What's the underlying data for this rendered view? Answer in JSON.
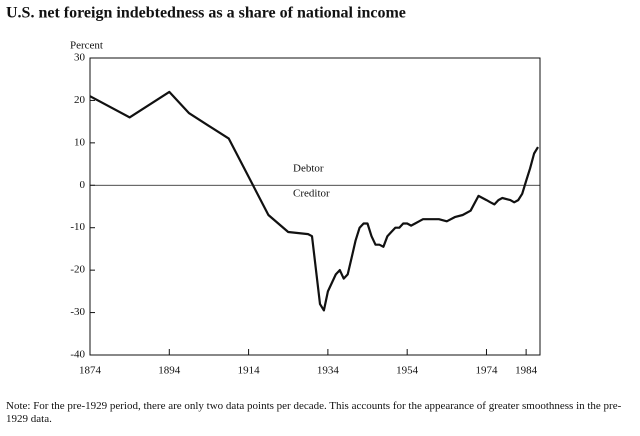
{
  "chart_data": {
    "type": "line",
    "title": "U.S. net foreign indebtedness as a share of national income",
    "y_label": "Percent",
    "annotations": [
      "Debtor",
      "Creditor"
    ],
    "note": "Note: For the pre-1929 period, there are only two data points per decade.  This accounts for the appearance of greater smoothness in the pre-1929 data.",
    "x": [
      1874,
      1884,
      1894,
      1899,
      1904,
      1909,
      1914,
      1919,
      1924,
      1929,
      1930,
      1931,
      1932,
      1933,
      1934,
      1936,
      1937,
      1938,
      1939,
      1940,
      1941,
      1942,
      1943,
      1944,
      1945,
      1946,
      1947,
      1948,
      1949,
      1950,
      1951,
      1952,
      1953,
      1954,
      1955,
      1956,
      1957,
      1958,
      1960,
      1962,
      1964,
      1966,
      1968,
      1970,
      1972,
      1974,
      1975,
      1976,
      1977,
      1978,
      1980,
      1981,
      1982,
      1983,
      1984,
      1985,
      1986,
      1987
    ],
    "series": [
      {
        "name": "Net foreign indebtedness",
        "color": "#111111",
        "values": [
          21,
          16,
          22,
          17,
          14,
          11,
          2,
          -7,
          -11,
          -11.5,
          -12,
          -20,
          -28,
          -29.5,
          -25,
          -21,
          -20,
          -22,
          -21,
          -17,
          -13,
          -10,
          -9,
          -9,
          -12,
          -14,
          -14,
          -14.5,
          -12,
          -11,
          -10,
          -10,
          -9,
          -9,
          -9.5,
          -9,
          -8.5,
          -8,
          -8,
          -8,
          -8.5,
          -7.5,
          -7,
          -6,
          -2.5,
          -3.5,
          -4,
          -4.5,
          -3.5,
          -3,
          -3.5,
          -4,
          -3.5,
          -2,
          1,
          4,
          7.5,
          9
        ]
      }
    ],
    "xlim": [
      1874,
      1987.5
    ],
    "xticks": [
      1874,
      1894,
      1914,
      1934,
      1954,
      1974,
      1984
    ],
    "ylim": [
      -40,
      30
    ],
    "yticks": [
      -40,
      -30,
      -20,
      -10,
      0,
      10,
      20,
      30
    ],
    "zero_line": true
  }
}
